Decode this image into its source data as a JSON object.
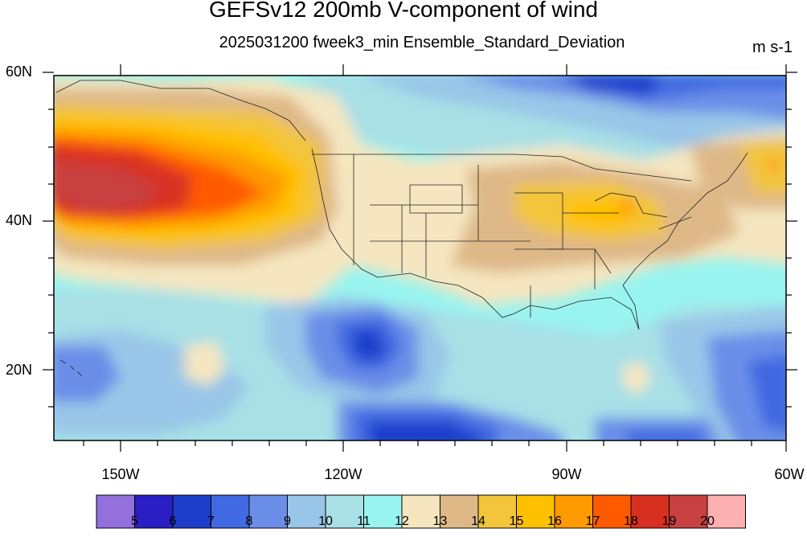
{
  "title": "GEFSv12 200mb V-component of wind",
  "subtitle": "2025031200 fweek3_min Ensemble_Standard_Deviation",
  "units": "m s-1",
  "lat_labels": [
    "60N",
    "40N",
    "20N"
  ],
  "lon_labels": [
    "150W",
    "120W",
    "90W",
    "60W"
  ],
  "colorbar": {
    "labels": [
      "5",
      "6",
      "7",
      "8",
      "9",
      "10",
      "11",
      "12",
      "13",
      "14",
      "15",
      "16",
      "17",
      "18",
      "19",
      "20"
    ],
    "colors": [
      "#9370DB",
      "#2A1FC5",
      "#1D3ECB",
      "#4169E1",
      "#6A8EE8",
      "#99C6E8",
      "#A8E0E6",
      "#98F4F0",
      "#F5E6C0",
      "#DEB887",
      "#F2C53A",
      "#FFC000",
      "#FF9A00",
      "#FF5A00",
      "#D83020",
      "#C84040",
      "#FFB0B0"
    ]
  }
}
